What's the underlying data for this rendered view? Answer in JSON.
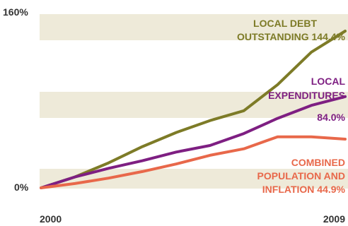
{
  "chart_data": {
    "type": "line",
    "title": "",
    "xlabel": "",
    "ylabel": "",
    "x": [
      2000,
      2001,
      2002,
      2003,
      2004,
      2005,
      2006,
      2007,
      2008,
      2009
    ],
    "x_tick_labels": [
      "2000",
      "2009"
    ],
    "y_tick_labels": [
      "0%",
      "160%"
    ],
    "ylim": [
      0,
      160
    ],
    "band_fill": "#eeead9",
    "series": [
      {
        "label_lines": [
          "LOCAL DEBT",
          "OUTSTANDING 144.4%"
        ],
        "color": "#7d7b27",
        "values": [
          0,
          10,
          23,
          38,
          51,
          62,
          71,
          95,
          125,
          144.4
        ]
      },
      {
        "label_lines": [
          "LOCAL",
          "EXPENDITURES",
          "84.0%"
        ],
        "color": "#7e1f82",
        "values": [
          0,
          10,
          18,
          25,
          33,
          39,
          50,
          64,
          76,
          84.0
        ]
      },
      {
        "label_lines": [
          "COMBINED",
          "POPULATION AND",
          "INFLATION 44.9%"
        ],
        "color": "#e8684a",
        "values": [
          0,
          4,
          9,
          15,
          22,
          30,
          36,
          47,
          47,
          44.9
        ]
      }
    ]
  }
}
